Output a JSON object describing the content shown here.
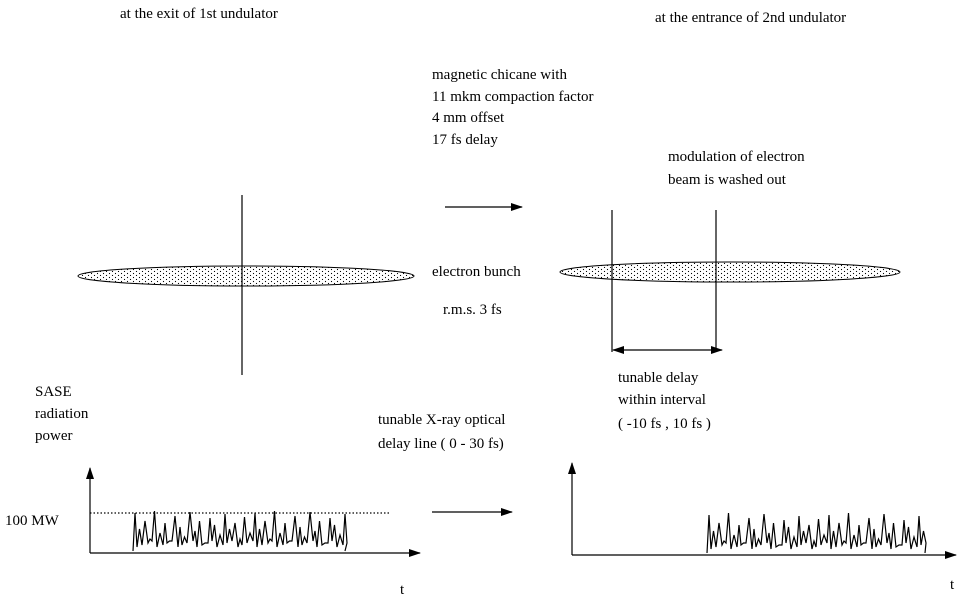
{
  "headers": {
    "left": "at the exit of 1st undulator",
    "right": "at the entrance of 2nd undulator"
  },
  "chicane": {
    "lines": [
      "magnetic chicane with",
      "11 mkm compaction factor",
      "4 mm offset",
      "17 fs delay"
    ]
  },
  "modulation": {
    "lines": [
      "modulation of electron",
      "beam is washed out"
    ]
  },
  "bunch": {
    "label": "electron bunch",
    "rms": "r.m.s. 3 fs"
  },
  "power_axis": {
    "lines": [
      "SASE",
      "radiation",
      "power"
    ],
    "level": "100 MW"
  },
  "optical_delay": {
    "lines": [
      "tunable X-ray optical",
      "delay line ( 0 - 30 fs)"
    ]
  },
  "tunable_delay": {
    "lines": [
      "tunable  delay",
      "within interval",
      "( -10 fs ,  10 fs )"
    ]
  },
  "time_labels": [
    "t",
    "t"
  ]
}
